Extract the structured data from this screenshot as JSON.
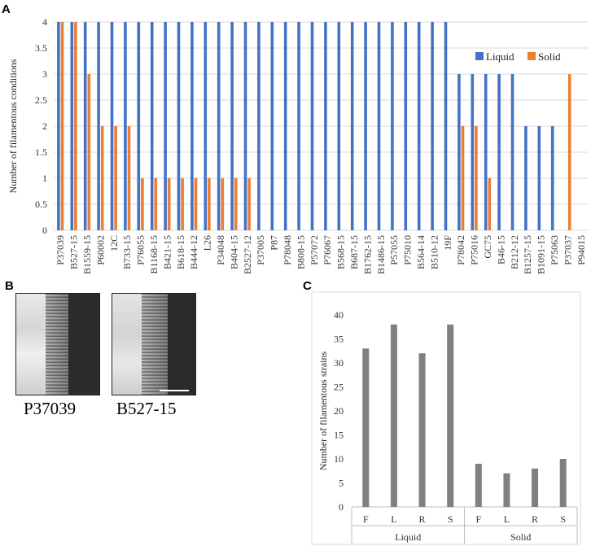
{
  "panels": {
    "a": "A",
    "b": "B",
    "c": "C"
  },
  "colors": {
    "liquid": "#4472C4",
    "solid": "#ED7D31",
    "gray_bar": "#808080",
    "grid": "#D9D9D9"
  },
  "chart_data": [
    {
      "type": "bar",
      "panel": "A",
      "ylabel": "Number of filamentous conditions",
      "xlabel": "",
      "ylim": [
        0,
        4
      ],
      "yticks": [
        "0",
        "0.5",
        "1",
        "1.5",
        "2",
        "2.5",
        "3",
        "3.5",
        "4"
      ],
      "grid": true,
      "legend_position": "top-right",
      "categories": [
        "P37039",
        "B527-15",
        "B1559-15",
        "P60002",
        "12C",
        "B733-15",
        "P76055",
        "B1168-15",
        "B421-15",
        "B618-15",
        "B444-12",
        "L26",
        "P34048",
        "B404-15",
        "B2527-12",
        "P37005",
        "P87",
        "P78048",
        "B808-15",
        "P57072",
        "P76067",
        "B568-15",
        "B687-15",
        "B1762-15",
        "B1486-15",
        "P57055",
        "P75010",
        "B564-14",
        "B510-12",
        "19F",
        "P78042",
        "P75016",
        "GC75",
        "B46-15",
        "B212-12",
        "B1257-15",
        "B1091-15",
        "P75063",
        "P37037",
        "P94015"
      ],
      "series": [
        {
          "name": "Liquid",
          "values": [
            4,
            4,
            4,
            4,
            4,
            4,
            4,
            4,
            4,
            4,
            4,
            4,
            4,
            4,
            4,
            4,
            4,
            4,
            4,
            4,
            4,
            4,
            4,
            4,
            4,
            4,
            4,
            4,
            4,
            4,
            3,
            3,
            3,
            3,
            3,
            2,
            2,
            2,
            0,
            0
          ]
        },
        {
          "name": "Solid",
          "values": [
            4,
            4,
            3,
            2,
            2,
            2,
            1,
            1,
            1,
            1,
            1,
            1,
            1,
            1,
            1,
            0,
            0,
            0,
            0,
            0,
            0,
            0,
            0,
            0,
            0,
            0,
            0,
            0,
            0,
            0,
            2,
            2,
            1,
            0,
            0,
            0,
            0,
            0,
            3,
            0
          ]
        }
      ]
    },
    {
      "type": "bar",
      "panel": "C",
      "ylabel": "Number of filamentous strains",
      "xlabel": "",
      "ylim": [
        0,
        40
      ],
      "yticks": [
        "0",
        "5",
        "10",
        "15",
        "20",
        "25",
        "30",
        "35",
        "40"
      ],
      "grid": false,
      "groups": [
        {
          "name": "Liquid",
          "categories": [
            "F",
            "L",
            "R",
            "S"
          ],
          "values": [
            33,
            38,
            32,
            38
          ]
        },
        {
          "name": "Solid",
          "categories": [
            "F",
            "L",
            "R",
            "S"
          ],
          "values": [
            9,
            7,
            8,
            10
          ]
        }
      ]
    }
  ],
  "micrographs": [
    {
      "label": "P37039"
    },
    {
      "label": "B527-15"
    }
  ]
}
